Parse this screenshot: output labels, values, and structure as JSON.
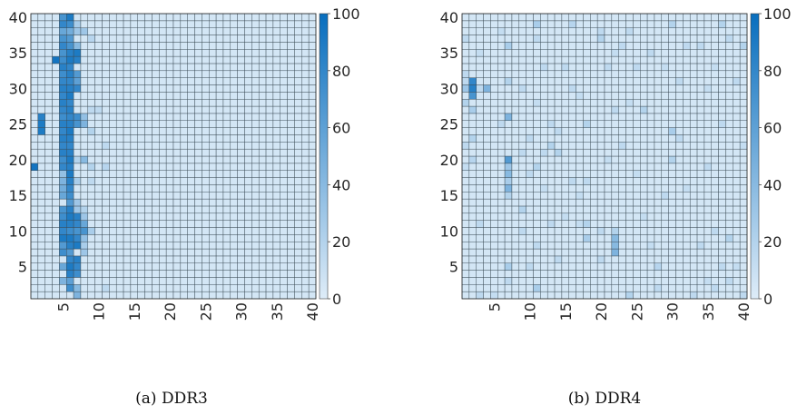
{
  "chart_data": [
    {
      "type": "heatmap",
      "caption": "(a) DDR3",
      "x_ticks": [
        5,
        10,
        15,
        20,
        25,
        30,
        35,
        40
      ],
      "y_ticks": [
        5,
        10,
        15,
        20,
        25,
        30,
        35,
        40
      ],
      "xlim": [
        1,
        40
      ],
      "ylim": [
        1,
        40
      ],
      "colorbar": {
        "min": 0,
        "max": 100,
        "ticks": [
          0,
          20,
          40,
          60,
          80,
          100
        ]
      },
      "base_value": 5,
      "cells": [
        [
          1,
          19,
          95
        ],
        [
          2,
          24,
          90
        ],
        [
          2,
          25,
          90
        ],
        [
          2,
          26,
          85
        ],
        [
          4,
          34,
          95
        ],
        [
          5,
          3,
          45
        ],
        [
          5,
          5,
          55
        ],
        [
          5,
          7,
          75
        ],
        [
          5,
          8,
          65
        ],
        [
          5,
          9,
          90
        ],
        [
          5,
          10,
          80
        ],
        [
          5,
          11,
          85
        ],
        [
          5,
          12,
          75
        ],
        [
          5,
          13,
          70
        ],
        [
          5,
          15,
          55
        ],
        [
          5,
          16,
          50
        ],
        [
          5,
          17,
          45
        ],
        [
          5,
          18,
          35
        ],
        [
          5,
          19,
          80
        ],
        [
          5,
          20,
          75
        ],
        [
          5,
          21,
          85
        ],
        [
          5,
          22,
          80
        ],
        [
          5,
          23,
          85
        ],
        [
          5,
          24,
          80
        ],
        [
          5,
          25,
          85
        ],
        [
          5,
          26,
          75
        ],
        [
          5,
          27,
          80
        ],
        [
          5,
          28,
          85
        ],
        [
          5,
          29,
          80
        ],
        [
          5,
          30,
          85
        ],
        [
          5,
          31,
          80
        ],
        [
          5,
          32,
          75
        ],
        [
          5,
          33,
          85
        ],
        [
          5,
          34,
          75
        ],
        [
          5,
          35,
          70
        ],
        [
          5,
          36,
          80
        ],
        [
          5,
          37,
          70
        ],
        [
          5,
          38,
          55
        ],
        [
          5,
          39,
          80
        ],
        [
          5,
          40,
          70
        ],
        [
          6,
          2,
          75
        ],
        [
          6,
          3,
          60
        ],
        [
          6,
          4,
          85
        ],
        [
          6,
          5,
          90
        ],
        [
          6,
          6,
          80
        ],
        [
          6,
          7,
          65
        ],
        [
          6,
          8,
          85
        ],
        [
          6,
          9,
          90
        ],
        [
          6,
          10,
          75
        ],
        [
          6,
          11,
          85
        ],
        [
          6,
          12,
          90
        ],
        [
          6,
          13,
          85
        ],
        [
          6,
          14,
          65
        ],
        [
          6,
          15,
          75
        ],
        [
          6,
          16,
          80
        ],
        [
          6,
          17,
          85
        ],
        [
          6,
          18,
          90
        ],
        [
          6,
          19,
          85
        ],
        [
          6,
          20,
          90
        ],
        [
          6,
          21,
          85
        ],
        [
          6,
          22,
          80
        ],
        [
          6,
          23,
          85
        ],
        [
          6,
          24,
          90
        ],
        [
          6,
          25,
          85
        ],
        [
          6,
          26,
          80
        ],
        [
          6,
          27,
          85
        ],
        [
          6,
          28,
          80
        ],
        [
          6,
          29,
          90
        ],
        [
          6,
          30,
          85
        ],
        [
          6,
          31,
          80
        ],
        [
          6,
          32,
          85
        ],
        [
          6,
          33,
          80
        ],
        [
          6,
          34,
          90
        ],
        [
          6,
          35,
          85
        ],
        [
          6,
          36,
          70
        ],
        [
          6,
          37,
          65
        ],
        [
          6,
          38,
          50
        ],
        [
          6,
          39,
          75
        ],
        [
          6,
          40,
          90
        ],
        [
          7,
          1,
          45
        ],
        [
          7,
          2,
          40
        ],
        [
          7,
          4,
          75
        ],
        [
          7,
          5,
          80
        ],
        [
          7,
          6,
          85
        ],
        [
          7,
          8,
          90
        ],
        [
          7,
          9,
          80
        ],
        [
          7,
          10,
          70
        ],
        [
          7,
          11,
          80
        ],
        [
          7,
          12,
          85
        ],
        [
          7,
          13,
          30
        ],
        [
          7,
          14,
          30
        ],
        [
          7,
          17,
          25
        ],
        [
          7,
          20,
          20
        ],
        [
          7,
          25,
          70
        ],
        [
          7,
          26,
          75
        ],
        [
          7,
          30,
          80
        ],
        [
          7,
          31,
          60
        ],
        [
          7,
          32,
          65
        ],
        [
          7,
          34,
          85
        ],
        [
          7,
          35,
          90
        ],
        [
          7,
          36,
          40
        ],
        [
          7,
          38,
          30
        ],
        [
          7,
          39,
          25
        ],
        [
          8,
          7,
          30
        ],
        [
          8,
          8,
          25
        ],
        [
          8,
          9,
          35
        ],
        [
          8,
          10,
          70
        ],
        [
          8,
          11,
          55
        ],
        [
          8,
          12,
          30
        ],
        [
          8,
          13,
          20
        ],
        [
          8,
          20,
          40
        ],
        [
          8,
          25,
          45
        ],
        [
          8,
          26,
          35
        ],
        [
          8,
          38,
          30
        ],
        [
          9,
          10,
          25
        ],
        [
          9,
          17,
          15
        ],
        [
          9,
          19,
          20
        ],
        [
          9,
          24,
          20
        ],
        [
          9,
          27,
          15
        ],
        [
          9,
          37,
          18
        ],
        [
          10,
          27,
          15
        ],
        [
          11,
          2,
          15
        ],
        [
          11,
          22,
          15
        ],
        [
          11,
          19,
          18
        ]
      ]
    },
    {
      "type": "heatmap",
      "caption": "(b) DDR4",
      "x_ticks": [
        5,
        10,
        15,
        20,
        25,
        30,
        35,
        40
      ],
      "y_ticks": [
        5,
        10,
        15,
        20,
        25,
        30,
        35,
        40
      ],
      "xlim": [
        1,
        40
      ],
      "ylim": [
        1,
        40
      ],
      "colorbar": {
        "min": 0,
        "max": 100,
        "ticks": [
          0,
          20,
          40,
          60,
          80,
          100
        ]
      },
      "base_value": 5,
      "cells": [
        [
          1,
          30,
          30
        ],
        [
          1,
          31,
          15
        ],
        [
          1,
          28,
          20
        ],
        [
          1,
          32,
          15
        ],
        [
          1,
          22,
          15
        ],
        [
          1,
          19,
          12
        ],
        [
          1,
          37,
          15
        ],
        [
          2,
          30,
          85
        ],
        [
          2,
          29,
          70
        ],
        [
          2,
          31,
          80
        ],
        [
          2,
          27,
          25
        ],
        [
          2,
          23,
          20
        ],
        [
          2,
          20,
          18
        ],
        [
          3,
          1,
          15
        ],
        [
          3,
          11,
          15
        ],
        [
          3,
          30,
          15
        ],
        [
          3,
          35,
          12
        ],
        [
          4,
          30,
          45
        ],
        [
          5,
          1,
          12
        ],
        [
          6,
          25,
          15
        ],
        [
          6,
          38,
          12
        ],
        [
          7,
          18,
          40
        ],
        [
          7,
          19,
          30
        ],
        [
          7,
          20,
          65
        ],
        [
          7,
          16,
          45
        ],
        [
          7,
          26,
          45
        ],
        [
          7,
          17,
          25
        ],
        [
          7,
          15,
          20
        ],
        [
          7,
          5,
          25
        ],
        [
          7,
          36,
          25
        ],
        [
          7,
          31,
          20
        ],
        [
          7,
          3,
          15
        ],
        [
          9,
          13,
          20
        ],
        [
          9,
          21,
          15
        ],
        [
          9,
          10,
          15
        ],
        [
          9,
          30,
          15
        ],
        [
          10,
          23,
          15
        ],
        [
          10,
          18,
          15
        ],
        [
          10,
          5,
          15
        ],
        [
          11,
          2,
          25
        ],
        [
          11,
          39,
          25
        ],
        [
          11,
          37,
          15
        ],
        [
          11,
          28,
          12
        ],
        [
          11,
          19,
          20
        ],
        [
          11,
          8,
          15
        ],
        [
          12,
          21,
          15
        ],
        [
          12,
          33,
          15
        ],
        [
          12,
          16,
          12
        ],
        [
          13,
          25,
          15
        ],
        [
          13,
          22,
          20
        ],
        [
          13,
          11,
          15
        ],
        [
          14,
          24,
          15
        ],
        [
          14,
          21,
          20
        ],
        [
          14,
          6,
          15
        ],
        [
          15,
          33,
          15
        ],
        [
          15,
          12,
          12
        ],
        [
          16,
          17,
          15
        ],
        [
          16,
          39,
          18
        ],
        [
          16,
          30,
          15
        ],
        [
          17,
          11,
          12
        ],
        [
          17,
          29,
          12
        ],
        [
          17,
          15,
          12
        ],
        [
          18,
          9,
          25
        ],
        [
          18,
          25,
          20
        ],
        [
          18,
          11,
          20
        ],
        [
          18,
          17,
          15
        ],
        [
          20,
          38,
          15
        ],
        [
          20,
          37,
          20
        ],
        [
          20,
          10,
          15
        ],
        [
          20,
          6,
          15
        ],
        [
          21,
          33,
          15
        ],
        [
          21,
          20,
          12
        ],
        [
          22,
          10,
          20
        ],
        [
          22,
          9,
          40
        ],
        [
          22,
          8,
          40
        ],
        [
          22,
          7,
          45
        ],
        [
          22,
          35,
          12
        ],
        [
          22,
          27,
          15
        ],
        [
          23,
          36,
          15
        ],
        [
          23,
          22,
          15
        ],
        [
          24,
          1,
          20
        ],
        [
          24,
          38,
          15
        ],
        [
          24,
          28,
          12
        ],
        [
          25,
          33,
          15
        ],
        [
          25,
          18,
          12
        ],
        [
          26,
          27,
          20
        ],
        [
          26,
          12,
          12
        ],
        [
          27,
          35,
          15
        ],
        [
          27,
          8,
          12
        ],
        [
          28,
          5,
          18
        ],
        [
          28,
          2,
          15
        ],
        [
          29,
          15,
          15
        ],
        [
          29,
          33,
          12
        ],
        [
          30,
          24,
          25
        ],
        [
          30,
          20,
          20
        ],
        [
          30,
          39,
          20
        ],
        [
          31,
          23,
          15
        ],
        [
          31,
          31,
          15
        ],
        [
          32,
          16,
          12
        ],
        [
          32,
          36,
          15
        ],
        [
          33,
          1,
          15
        ],
        [
          34,
          36,
          15
        ],
        [
          34,
          8,
          15
        ],
        [
          35,
          3,
          12
        ],
        [
          35,
          19,
          15
        ],
        [
          35,
          30,
          12
        ],
        [
          36,
          2,
          15
        ],
        [
          36,
          33,
          12
        ],
        [
          36,
          10,
          15
        ],
        [
          37,
          39,
          20
        ],
        [
          37,
          5,
          15
        ],
        [
          37,
          25,
          15
        ],
        [
          38,
          37,
          15
        ],
        [
          38,
          9,
          20
        ],
        [
          38,
          3,
          15
        ],
        [
          39,
          5,
          12
        ],
        [
          39,
          31,
          15
        ],
        [
          40,
          36,
          20
        ],
        [
          40,
          1,
          15
        ],
        [
          40,
          22,
          12
        ]
      ]
    }
  ]
}
